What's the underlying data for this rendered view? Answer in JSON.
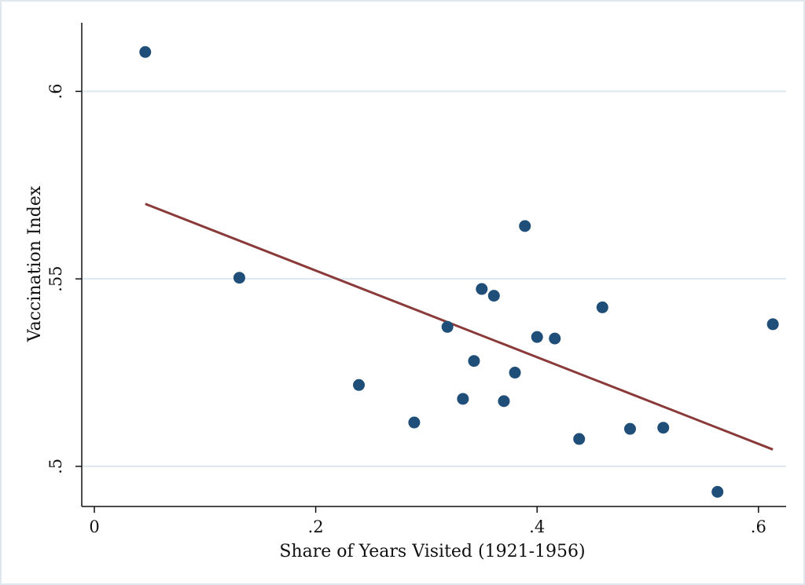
{
  "chart_data": {
    "type": "scatter",
    "title": "",
    "xlabel": "Share of Years Visited (1921-1956)",
    "ylabel": "Vaccination Index",
    "xlim": [
      0,
      0.625
    ],
    "ylim": [
      0.4893,
      0.6183
    ],
    "xticks": [
      0,
      0.2,
      0.4,
      0.6
    ],
    "xtick_labels": [
      "0",
      ".2",
      ".4",
      ".6"
    ],
    "yticks": [
      0.5,
      0.55,
      0.6
    ],
    "ytick_labels": [
      ".5",
      ".55",
      ".6"
    ],
    "grid": "horizontal",
    "legend": "none",
    "colors": {
      "points": "#1f4e79",
      "fit_line": "#8b3a3a",
      "grid": "#dce7ee",
      "frame": "#dfe8ef"
    },
    "series": [
      {
        "type": "scatter",
        "points": [
          {
            "x": 0.046,
            "y": 0.6105
          },
          {
            "x": 0.131,
            "y": 0.5503
          },
          {
            "x": 0.239,
            "y": 0.5217
          },
          {
            "x": 0.289,
            "y": 0.5117
          },
          {
            "x": 0.319,
            "y": 0.5372
          },
          {
            "x": 0.333,
            "y": 0.518
          },
          {
            "x": 0.343,
            "y": 0.5281
          },
          {
            "x": 0.35,
            "y": 0.5473
          },
          {
            "x": 0.361,
            "y": 0.5455
          },
          {
            "x": 0.37,
            "y": 0.5174
          },
          {
            "x": 0.38,
            "y": 0.525
          },
          {
            "x": 0.389,
            "y": 0.5641
          },
          {
            "x": 0.4,
            "y": 0.5345
          },
          {
            "x": 0.416,
            "y": 0.5341
          },
          {
            "x": 0.438,
            "y": 0.5073
          },
          {
            "x": 0.459,
            "y": 0.5424
          },
          {
            "x": 0.484,
            "y": 0.51
          },
          {
            "x": 0.514,
            "y": 0.5103
          },
          {
            "x": 0.563,
            "y": 0.4932
          },
          {
            "x": 0.613,
            "y": 0.5379
          }
        ]
      },
      {
        "type": "line",
        "points": [
          {
            "x": 0.046,
            "y": 0.57
          },
          {
            "x": 0.613,
            "y": 0.5045
          }
        ]
      }
    ]
  }
}
